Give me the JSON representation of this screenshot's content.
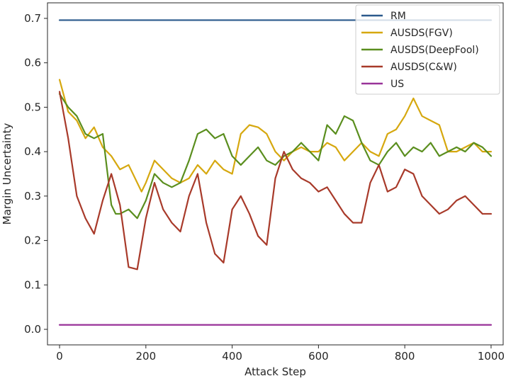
{
  "chart_data": {
    "type": "line",
    "xlabel": "Attack Step",
    "ylabel": "Margin Uncertainty",
    "xlim": [
      -28,
      1028
    ],
    "ylim": [
      -0.035,
      0.735
    ],
    "xticks": [
      0,
      200,
      400,
      600,
      800,
      1000
    ],
    "xtick_labels": [
      "0",
      "200",
      "400",
      "600",
      "800",
      "1000"
    ],
    "yticks": [
      0.0,
      0.1,
      0.2,
      0.3,
      0.4,
      0.5,
      0.6,
      0.7
    ],
    "ytick_labels": [
      "0.0",
      "0.1",
      "0.2",
      "0.3",
      "0.4",
      "0.5",
      "0.6",
      "0.7"
    ],
    "grid": false,
    "legend_position": "top-right",
    "series": [
      {
        "name": "RM",
        "color": "#2b5a8c",
        "x": [
          0,
          1000
        ],
        "y": [
          0.696,
          0.696
        ]
      },
      {
        "name": "AUSDS(FGV)",
        "color": "#d6a80f",
        "x": [
          0,
          20,
          40,
          60,
          80,
          100,
          120,
          140,
          160,
          180,
          190,
          200,
          220,
          240,
          260,
          280,
          300,
          320,
          340,
          360,
          380,
          400,
          420,
          440,
          460,
          480,
          500,
          520,
          540,
          560,
          580,
          600,
          620,
          640,
          660,
          680,
          700,
          720,
          740,
          760,
          780,
          800,
          820,
          840,
          860,
          880,
          900,
          920,
          940,
          960,
          980,
          1000
        ],
        "y": [
          0.562,
          0.49,
          0.47,
          0.43,
          0.455,
          0.41,
          0.39,
          0.36,
          0.37,
          0.33,
          0.31,
          0.33,
          0.38,
          0.36,
          0.34,
          0.33,
          0.34,
          0.37,
          0.35,
          0.38,
          0.36,
          0.35,
          0.44,
          0.46,
          0.455,
          0.44,
          0.4,
          0.38,
          0.4,
          0.41,
          0.4,
          0.4,
          0.42,
          0.41,
          0.38,
          0.4,
          0.42,
          0.4,
          0.39,
          0.44,
          0.45,
          0.48,
          0.52,
          0.48,
          0.47,
          0.46,
          0.4,
          0.4,
          0.41,
          0.42,
          0.4,
          0.4
        ]
      },
      {
        "name": "AUSDS(DeepFool)",
        "color": "#5a8e1e",
        "x": [
          0,
          20,
          40,
          60,
          80,
          100,
          110,
          120,
          130,
          140,
          160,
          180,
          200,
          220,
          240,
          260,
          280,
          300,
          320,
          340,
          360,
          380,
          400,
          420,
          440,
          460,
          480,
          500,
          520,
          540,
          560,
          580,
          600,
          620,
          640,
          660,
          680,
          700,
          720,
          740,
          760,
          780,
          800,
          820,
          840,
          860,
          880,
          900,
          920,
          940,
          960,
          980,
          1000
        ],
        "y": [
          0.53,
          0.5,
          0.48,
          0.44,
          0.43,
          0.44,
          0.36,
          0.28,
          0.26,
          0.26,
          0.27,
          0.25,
          0.29,
          0.35,
          0.33,
          0.32,
          0.33,
          0.38,
          0.44,
          0.45,
          0.43,
          0.44,
          0.39,
          0.37,
          0.39,
          0.41,
          0.38,
          0.37,
          0.39,
          0.4,
          0.42,
          0.4,
          0.38,
          0.46,
          0.44,
          0.48,
          0.47,
          0.42,
          0.38,
          0.37,
          0.4,
          0.42,
          0.39,
          0.41,
          0.4,
          0.42,
          0.39,
          0.4,
          0.41,
          0.4,
          0.42,
          0.41,
          0.39
        ]
      },
      {
        "name": "AUSDS(C&W)",
        "color": "#a83a2a",
        "x": [
          0,
          20,
          40,
          60,
          80,
          100,
          120,
          140,
          160,
          180,
          200,
          220,
          240,
          260,
          280,
          300,
          320,
          340,
          360,
          380,
          400,
          420,
          440,
          460,
          480,
          500,
          520,
          540,
          560,
          580,
          600,
          620,
          640,
          660,
          680,
          700,
          720,
          740,
          760,
          780,
          800,
          820,
          840,
          860,
          880,
          900,
          920,
          940,
          960,
          980,
          1000
        ],
        "y": [
          0.535,
          0.43,
          0.3,
          0.25,
          0.215,
          0.29,
          0.35,
          0.28,
          0.14,
          0.135,
          0.25,
          0.33,
          0.27,
          0.24,
          0.22,
          0.3,
          0.35,
          0.24,
          0.17,
          0.15,
          0.27,
          0.3,
          0.26,
          0.21,
          0.19,
          0.34,
          0.4,
          0.36,
          0.34,
          0.33,
          0.31,
          0.32,
          0.29,
          0.26,
          0.24,
          0.24,
          0.33,
          0.37,
          0.31,
          0.32,
          0.36,
          0.35,
          0.3,
          0.28,
          0.26,
          0.27,
          0.29,
          0.3,
          0.28,
          0.26,
          0.26
        ]
      },
      {
        "name": "US",
        "color": "#993399",
        "x": [
          0,
          1000
        ],
        "y": [
          0.01,
          0.01
        ]
      }
    ]
  }
}
